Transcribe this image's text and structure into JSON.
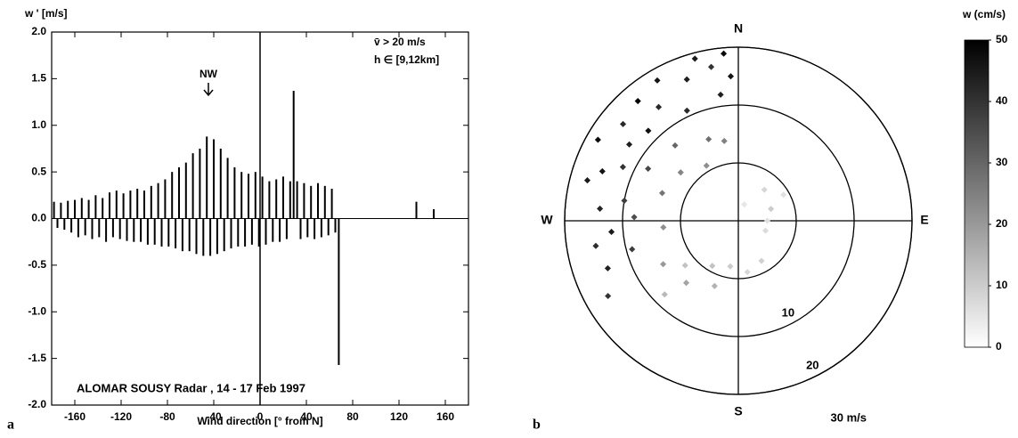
{
  "chart_data": [
    {
      "type": "spike",
      "panel": "a",
      "y_label": "w ' [m/s]",
      "x_label": "Wind direction  [°  from N]",
      "annotations": [
        "NW",
        "v̄ > 20 m/s",
        "h ∈ [9,12km]",
        "ALOMAR SOUSY Radar , 14 - 17 Feb 1997"
      ],
      "vline": 0,
      "color": "#000000",
      "x": [
        -178,
        -175,
        -172,
        -169,
        -166,
        -163,
        -160,
        -157,
        -154,
        -151,
        -148,
        -145,
        -142,
        -139,
        -136,
        -133,
        -130,
        -127,
        -124,
        -121,
        -118,
        -115,
        -112,
        -109,
        -106,
        -103,
        -100,
        -97,
        -94,
        -91,
        -88,
        -85,
        -82,
        -79,
        -76,
        -73,
        -70,
        -67,
        -64,
        -61,
        -58,
        -55,
        -52,
        -49,
        -46,
        -43,
        -40,
        -37,
        -34,
        -31,
        -28,
        -25,
        -22,
        -19,
        -16,
        -13,
        -10,
        -7,
        -4,
        -1,
        2,
        5,
        8,
        11,
        14,
        17,
        20,
        23,
        26,
        29,
        32,
        35,
        38,
        41,
        44,
        47,
        50,
        53,
        56,
        59,
        62,
        65,
        68,
        135,
        150
      ],
      "values": [
        0.18,
        -0.1,
        0.17,
        -0.12,
        0.19,
        -0.15,
        0.2,
        -0.2,
        0.22,
        -0.18,
        0.2,
        -0.22,
        0.25,
        -0.2,
        0.22,
        -0.25,
        0.28,
        -0.2,
        0.3,
        -0.22,
        0.27,
        -0.24,
        0.3,
        -0.25,
        0.32,
        -0.25,
        0.3,
        -0.28,
        0.35,
        -0.28,
        0.38,
        -0.3,
        0.42,
        -0.3,
        0.5,
        -0.32,
        0.55,
        -0.35,
        0.6,
        -0.35,
        0.7,
        -0.38,
        0.75,
        -0.4,
        0.88,
        -0.4,
        0.85,
        -0.38,
        0.75,
        -0.35,
        0.65,
        -0.32,
        0.55,
        -0.3,
        0.5,
        -0.3,
        0.48,
        -0.28,
        0.5,
        -0.3,
        0.45,
        -0.28,
        0.4,
        -0.25,
        0.42,
        -0.25,
        0.45,
        -0.22,
        0.4,
        1.37,
        0.4,
        -0.22,
        0.38,
        -0.2,
        0.35,
        -0.22,
        0.38,
        -0.2,
        0.35,
        -0.18,
        0.32,
        -0.15,
        -1.57,
        0.18,
        0.1
      ],
      "xlim": [
        -180,
        180
      ],
      "xticks": [
        -160,
        -120,
        -80,
        -40,
        0,
        40,
        80,
        120,
        160
      ],
      "ylim": [
        -2,
        2
      ],
      "yticks": [
        {
          "value": 2,
          "label": "2.0"
        },
        {
          "value": 1.5,
          "label": "1.5"
        },
        {
          "value": 1,
          "label": "1.0"
        },
        0.5,
        {
          "value": 0,
          "label": "0.0"
        },
        -0.5,
        {
          "value": -1,
          "label": "-1.0"
        },
        -1.5,
        {
          "value": -2,
          "label": "-2.0"
        }
      ]
    },
    {
      "type": "polar_scatter",
      "panel": "b",
      "directions": [
        "N",
        "E",
        "S",
        "W"
      ],
      "rlim": [
        0,
        30
      ],
      "rticks": [
        10,
        20,
        {
          "value": 30,
          "label": "30 m/s"
        }
      ],
      "theta": [
        -75,
        -60,
        -50,
        -40,
        -30,
        -20,
        -10,
        -5,
        -15,
        -35,
        -45,
        -55,
        -65,
        -70,
        -85,
        -95,
        -100,
        -110,
        -120,
        -80,
        -25,
        -8,
        -3,
        -60,
        -88,
        -105,
        -40,
        -20,
        -10,
        -50,
        -70,
        -95,
        -120,
        -140,
        -160,
        -30,
        40,
        70,
        90,
        110,
        150,
        170,
        -170,
        -150,
        20,
        60,
        -135,
        -130
      ],
      "r": [
        27,
        28,
        26,
        27,
        28,
        26,
        27,
        29,
        29,
        24,
        22,
        23,
        22,
        25,
        24,
        22,
        25,
        24,
        26,
        20,
        21,
        22,
        25,
        18,
        18,
        19,
        17,
        15,
        14,
        13,
        14,
        13,
        15,
        14,
        12,
        11,
        7,
        6,
        5,
        5,
        8,
        9,
        8,
        9,
        3,
        9,
        18,
        12
      ],
      "w": [
        45,
        48,
        42,
        50,
        46,
        44,
        40,
        48,
        45,
        42,
        47,
        44,
        40,
        46,
        43,
        45,
        41,
        44,
        40,
        38,
        42,
        44,
        46,
        36,
        35,
        38,
        30,
        28,
        25,
        24,
        27,
        22,
        20,
        18,
        15,
        22,
        8,
        10,
        6,
        7,
        9,
        8,
        10,
        12,
        5,
        6,
        14,
        12
      ],
      "colorbar_label": "w (cm/s)",
      "clim": [
        0,
        50
      ],
      "cticks": [
        0,
        10,
        20,
        30,
        40,
        50
      ],
      "cmap": [
        "#ffffff",
        "#000000"
      ]
    }
  ]
}
